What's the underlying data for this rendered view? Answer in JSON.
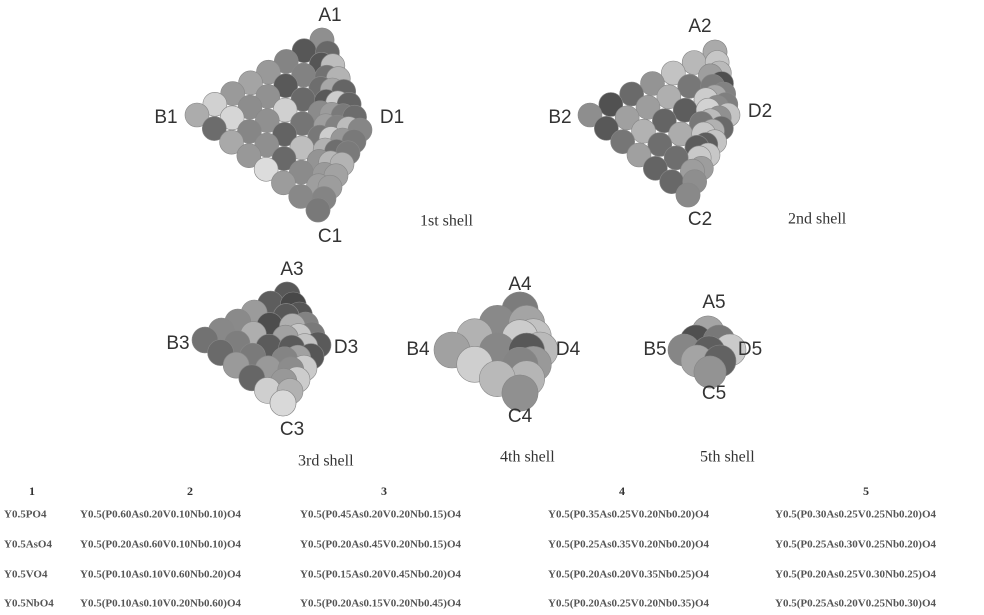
{
  "figure": {
    "shells": [
      {
        "A": "A1",
        "B": "B1",
        "C": "C1",
        "D": "D1",
        "caption": "1st shell"
      },
      {
        "A": "A2",
        "B": "B2",
        "C": "C2",
        "D": "D2",
        "caption": "2nd shell"
      },
      {
        "A": "A3",
        "B": "B3",
        "C": "C3",
        "D": "D3",
        "caption": "3rd shell"
      },
      {
        "A": "A4",
        "B": "B4",
        "C": "C4",
        "D": "D4",
        "caption": "4th shell"
      },
      {
        "A": "A5",
        "B": "B5",
        "C": "C5",
        "D": "D5",
        "caption": "5th shell"
      }
    ]
  },
  "table": {
    "headers": [
      "1",
      "2",
      "3",
      "4",
      "5"
    ],
    "rows": [
      [
        "Y0.5PO4",
        "Y0.5(P0.60As0.20V0.10Nb0.10)O4",
        "Y0.5(P0.45As0.20V0.20Nb0.15)O4",
        "Y0.5(P0.35As0.25V0.20Nb0.20)O4",
        "Y0.5(P0.30As0.25V0.25Nb0.20)O4"
      ],
      [
        "Y0.5AsO4",
        "Y0.5(P0.20As0.60V0.10Nb0.10)O4",
        "Y0.5(P0.20As0.45V0.20Nb0.15)O4",
        "Y0.5(P0.25As0.35V0.20Nb0.20)O4",
        "Y0.5(P0.25As0.30V0.25Nb0.20)O4"
      ],
      [
        "Y0.5VO4",
        "Y0.5(P0.10As0.10V0.60Nb0.20)O4",
        "Y0.5(P0.15As0.20V0.45Nb0.20)O4",
        "Y0.5(P0.20As0.20V0.35Nb0.25)O4",
        "Y0.5(P0.20As0.25V0.30Nb0.25)O4"
      ],
      [
        "Y0.5NbO4",
        "Y0.5(P0.10As0.10V0.20Nb0.60)O4",
        "Y0.5(P0.20As0.15V0.20Nb0.45)O4",
        "Y0.5(P0.20As0.25V0.20Nb0.35)O4",
        "Y0.5(P0.25As0.20V0.25Nb0.30)O4"
      ]
    ]
  }
}
